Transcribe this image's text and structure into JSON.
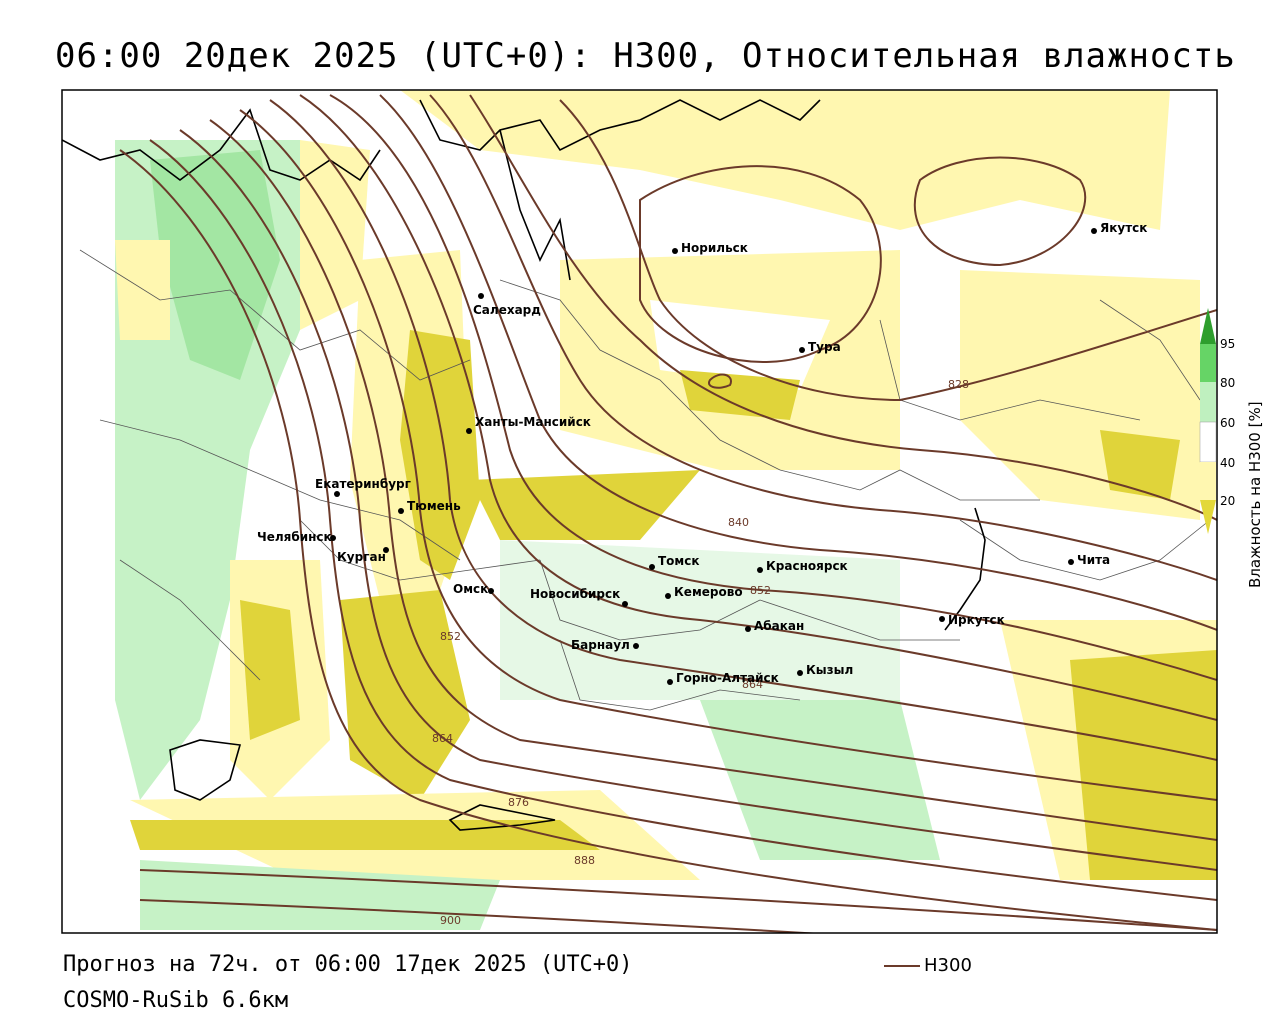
{
  "header": {
    "title": "06:00 20дек 2025 (UTC+0): H300, Относительная влажность"
  },
  "footer": {
    "forecast": "Прогноз на 72ч. от 06:00 17дек 2025 (UTC+0)",
    "model": "COSMO-RuSib 6.6км"
  },
  "legend": {
    "line_label": "H300",
    "line_color": "#6b3a2a"
  },
  "colorbar": {
    "title": "Влажность на H300 [%]",
    "ticks": [
      "95",
      "80",
      "60",
      "40",
      "20"
    ],
    "colors": [
      "#2e9e2e",
      "#66d466",
      "#bff0bf",
      "#ffffff",
      "#fff7b0",
      "#e3d83a"
    ]
  },
  "colors": {
    "land_border": "#555555",
    "coast": "#000000",
    "contour": "#6b3a2a",
    "humid_light": "#fff7b0",
    "humid_mid": "#e0d43a",
    "humid_green_light": "#c6f2c6",
    "humid_green": "#7fd77f"
  },
  "cities": [
    {
      "name": "Норильск"
    },
    {
      "name": "Якутск"
    },
    {
      "name": "Салехард"
    },
    {
      "name": "Тура"
    },
    {
      "name": "Ханты-Мансийск"
    },
    {
      "name": "Екатеринбург"
    },
    {
      "name": "Тюмень"
    },
    {
      "name": "Челябинск"
    },
    {
      "name": "Курган"
    },
    {
      "name": "Омск"
    },
    {
      "name": "Томск"
    },
    {
      "name": "Красноярск"
    },
    {
      "name": "Новосибирск"
    },
    {
      "name": "Кемерово"
    },
    {
      "name": "Абакан"
    },
    {
      "name": "Иркутск"
    },
    {
      "name": "Чита"
    },
    {
      "name": "Барнаул"
    },
    {
      "name": "Кызыл"
    },
    {
      "name": "Горно-Алтайск"
    }
  ],
  "isolines": [
    "828",
    "840",
    "852",
    "852",
    "864",
    "864",
    "876",
    "888",
    "900"
  ]
}
